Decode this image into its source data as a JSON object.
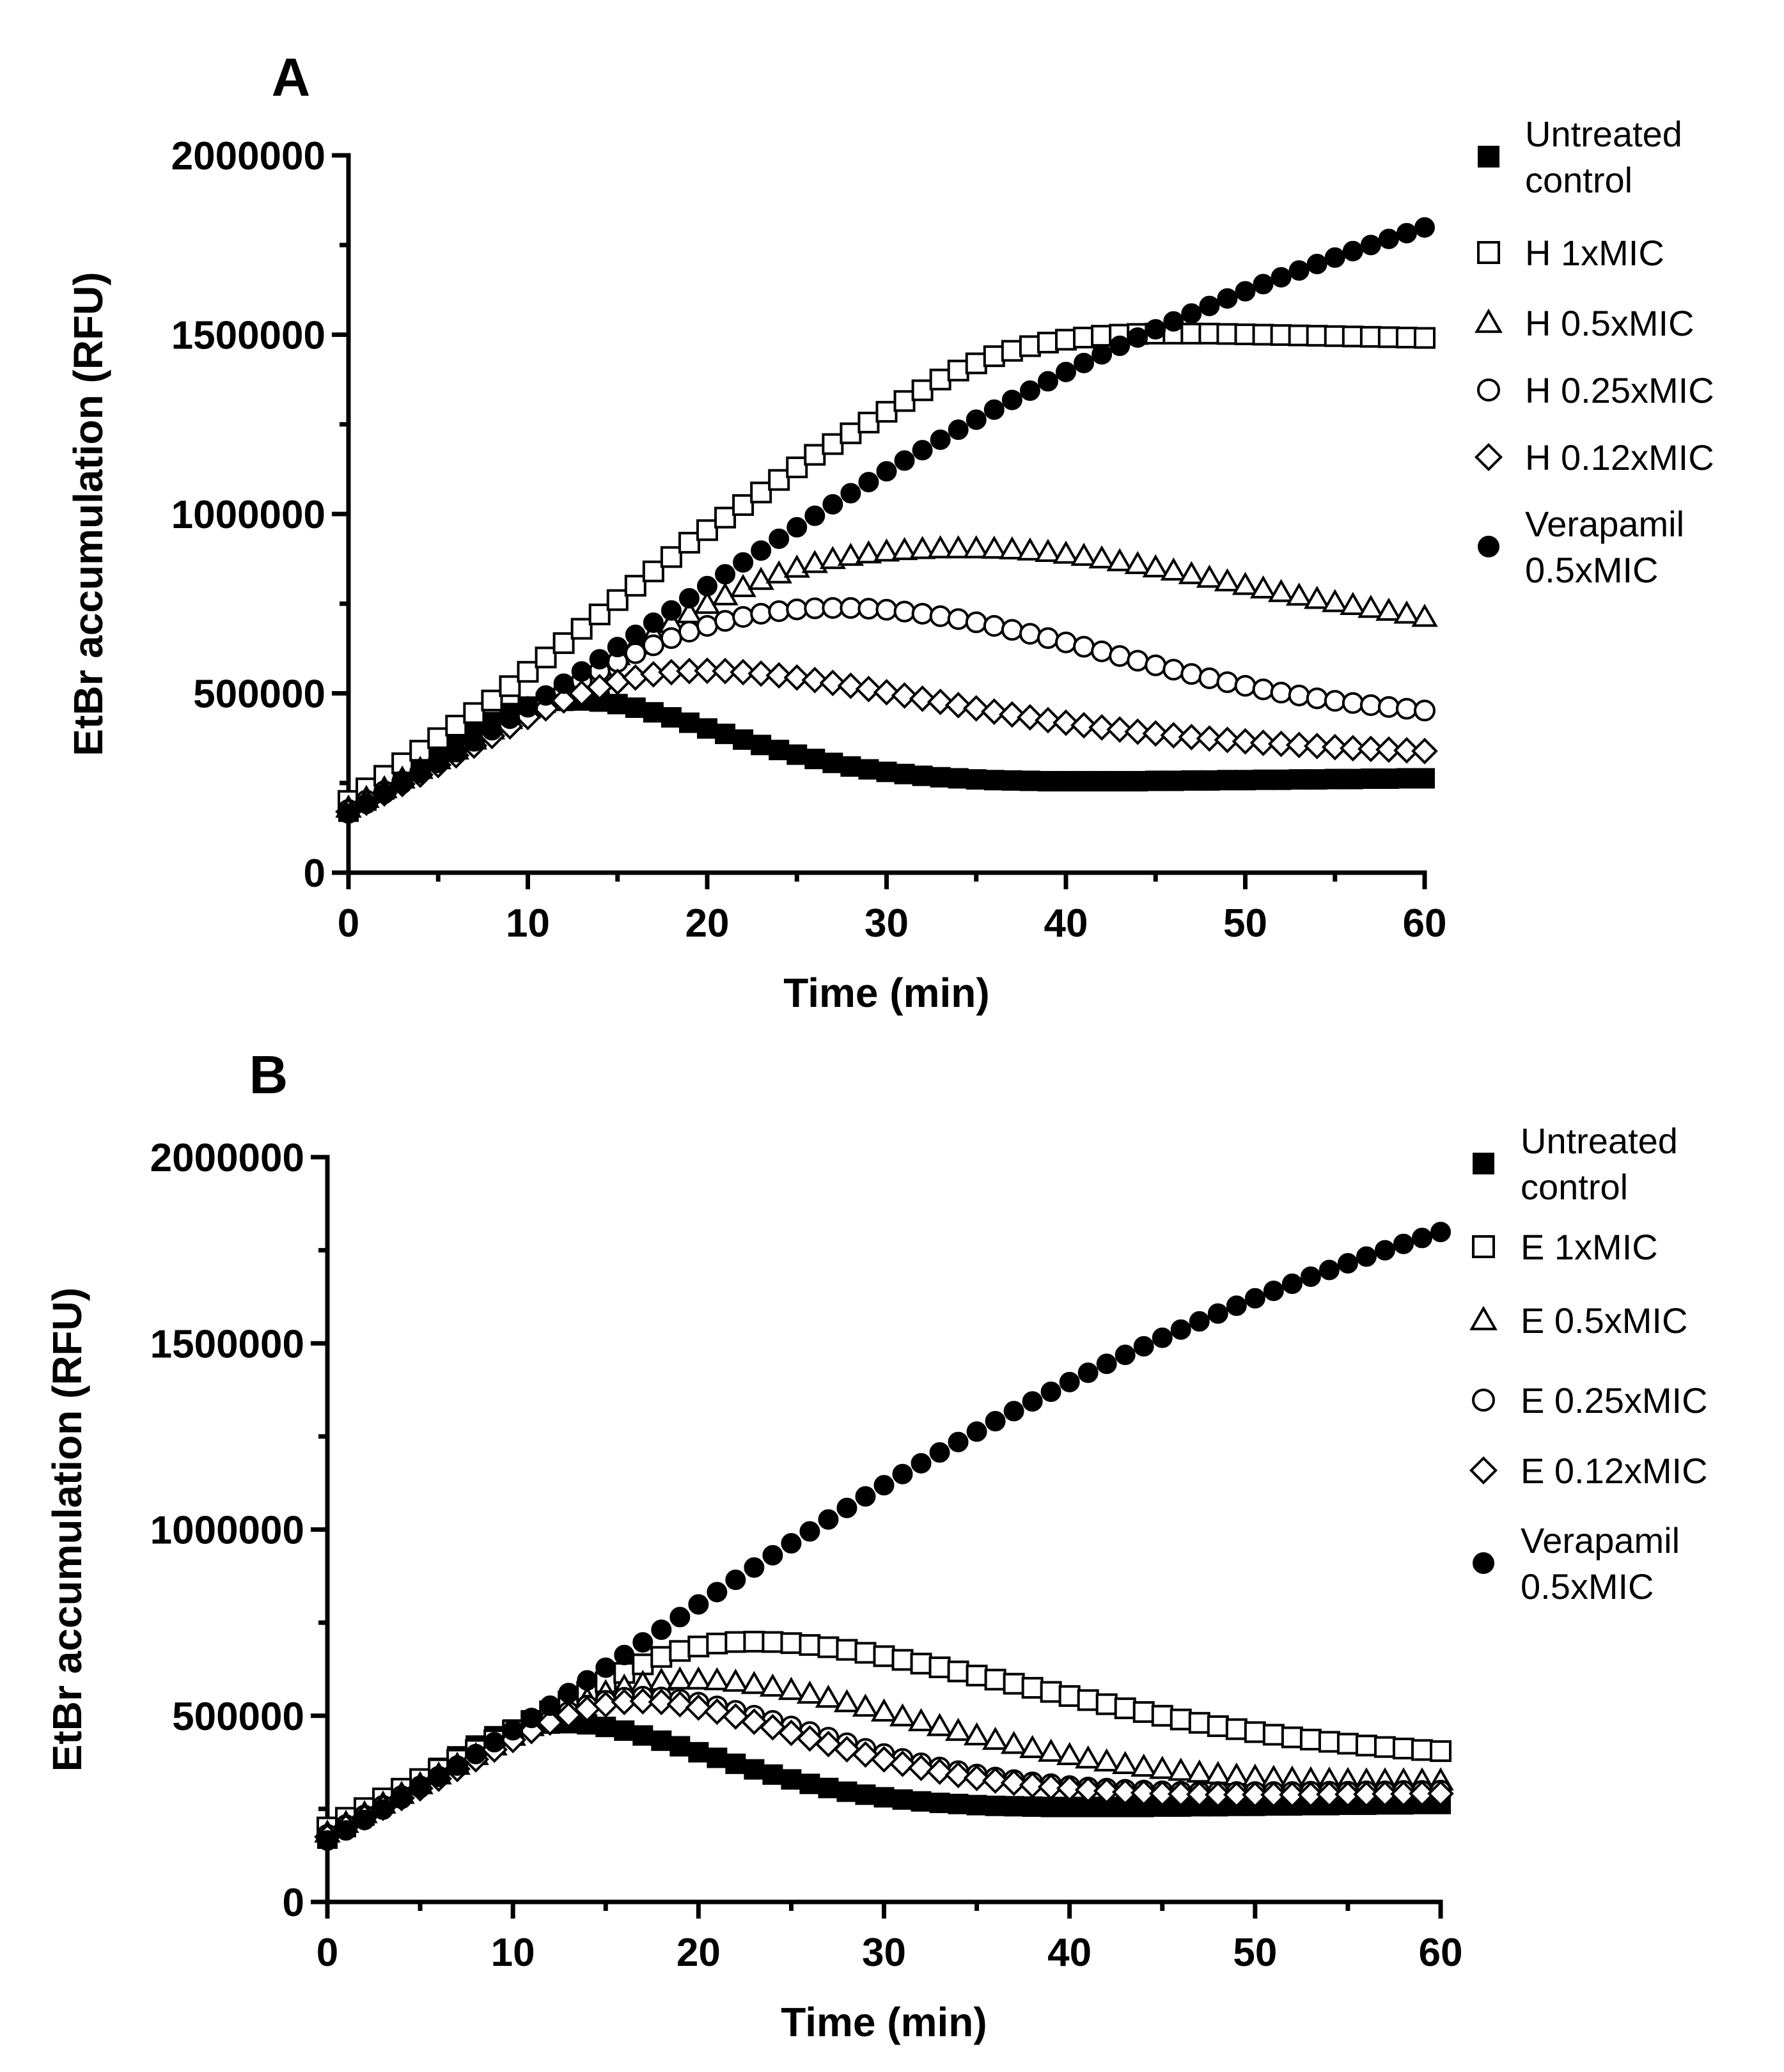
{
  "chart_data": [
    {
      "type": "scatter",
      "panel_label": "A",
      "xlabel": "Time (min)",
      "ylabel": "EtBr accumulation (RFU)",
      "xlim": [
        0,
        60
      ],
      "ylim": [
        0,
        2000000
      ],
      "x_ticks": [
        "0",
        "10",
        "20",
        "30",
        "40",
        "50",
        "60"
      ],
      "y_ticks": [
        "0",
        "500000",
        "1000000",
        "1500000",
        "2000000"
      ],
      "grid": false,
      "legend_position": "right",
      "x": [
        0,
        1,
        2,
        3,
        4,
        5,
        6,
        7,
        8,
        9,
        10,
        11,
        12,
        13,
        14,
        15,
        16,
        17,
        18,
        19,
        20,
        21,
        22,
        23,
        24,
        25,
        26,
        27,
        28,
        29,
        30,
        31,
        32,
        33,
        34,
        35,
        36,
        37,
        38,
        39,
        40,
        41,
        42,
        43,
        44,
        45,
        46,
        47,
        48,
        49,
        50,
        51,
        52,
        53,
        54,
        55,
        56,
        57,
        58,
        59,
        60
      ],
      "series": [
        {
          "name_lines": [
            "Untreated",
            "control"
          ],
          "marker": "square-filled",
          "values": [
            170000,
            201000,
            232000,
            264000,
            296000,
            328000,
            360000,
            391000,
            420000,
            445000,
            463000,
            474000,
            479000,
            480000,
            477000,
            470000,
            460000,
            447000,
            433000,
            418000,
            402000,
            387000,
            371000,
            356000,
            342000,
            329000,
            317000,
            306000,
            296000,
            288000,
            281000,
            275000,
            270000,
            266000,
            263000,
            260000,
            258000,
            257000,
            256000,
            255000,
            255000,
            255000,
            255000,
            255000,
            255000,
            256000,
            256000,
            257000,
            257000,
            258000,
            258000,
            259000,
            259000,
            260000,
            260000,
            261000,
            261000,
            262000,
            262000,
            263000,
            263000
          ]
        },
        {
          "name_lines": [
            "H 1xMIC"
          ],
          "marker": "square-open",
          "values": [
            200000,
            235000,
            270000,
            305000,
            340000,
            375000,
            410000,
            445000,
            480000,
            520000,
            560000,
            600000,
            640000,
            680000,
            720000,
            760000,
            800000,
            840000,
            880000,
            920000,
            955000,
            990000,
            1025000,
            1060000,
            1095000,
            1130000,
            1165000,
            1195000,
            1225000,
            1255000,
            1285000,
            1315000,
            1345000,
            1375000,
            1400000,
            1420000,
            1440000,
            1455000,
            1468000,
            1478000,
            1486000,
            1492000,
            1497000,
            1500000,
            1502000,
            1503000,
            1503000,
            1503000,
            1503000,
            1502000,
            1501000,
            1500000,
            1499000,
            1498000,
            1497000,
            1496000,
            1495000,
            1494000,
            1493000,
            1492000,
            1491000
          ]
        },
        {
          "name_lines": [
            "H 0.5xMIC"
          ],
          "marker": "triangle-open",
          "values": [
            180000,
            207000,
            234000,
            261000,
            288000,
            315000,
            342000,
            370000,
            398000,
            427000,
            456000,
            485000,
            515000,
            545000,
            575000,
            605000,
            635000,
            665000,
            695000,
            722000,
            748000,
            772000,
            795000,
            815000,
            833000,
            849000,
            862000,
            873000,
            882000,
            889000,
            894000,
            898000,
            901000,
            903000,
            903000,
            903000,
            902000,
            900000,
            897000,
            893000,
            888000,
            882000,
            875000,
            867000,
            859000,
            850000,
            841000,
            831000,
            821000,
            811000,
            801000,
            791000,
            781000,
            771000,
            762000,
            753000,
            745000,
            737000,
            729000,
            721000,
            712000
          ]
        },
        {
          "name_lines": [
            "H 0.25xMIC"
          ],
          "marker": "circle-open",
          "values": [
            175000,
            201000,
            227000,
            254000,
            281000,
            308000,
            335000,
            363000,
            391000,
            420000,
            449000,
            478000,
            507000,
            535000,
            562000,
            588000,
            612000,
            634000,
            654000,
            672000,
            688000,
            702000,
            713000,
            722000,
            729000,
            734000,
            737000,
            738000,
            738000,
            736000,
            733000,
            728000,
            722000,
            715000,
            707000,
            698000,
            688000,
            677000,
            666000,
            654000,
            642000,
            630000,
            617000,
            604000,
            591000,
            578000,
            566000,
            554000,
            542000,
            531000,
            521000,
            511000,
            502000,
            494000,
            486000,
            479000,
            473000,
            467000,
            462000,
            457000,
            452000
          ]
        },
        {
          "name_lines": [
            "H 0.12xMIC"
          ],
          "marker": "diamond-open",
          "values": [
            170000,
            195000,
            221000,
            247000,
            273000,
            300000,
            327000,
            354000,
            381000,
            408000,
            434000,
            458000,
            480000,
            500000,
            517000,
            532000,
            544000,
            553000,
            559000,
            562000,
            563000,
            562000,
            559000,
            555000,
            550000,
            544000,
            537000,
            529000,
            521000,
            512000,
            503000,
            494000,
            485000,
            476000,
            467000,
            458000,
            449000,
            441000,
            433000,
            425000,
            418000,
            411000,
            405000,
            399000,
            393000,
            388000,
            383000,
            378000,
            374000,
            370000,
            366000,
            362000,
            359000,
            356000,
            353000,
            350000,
            347000,
            345000,
            343000,
            341000,
            339000
          ]
        },
        {
          "name_lines": [
            "Verapamil",
            "0.5xMIC"
          ],
          "marker": "circle-filled",
          "values": [
            165000,
            192000,
            220000,
            248000,
            277000,
            306000,
            336000,
            366000,
            397000,
            429000,
            461000,
            494000,
            527000,
            561000,
            595000,
            629000,
            663000,
            697000,
            731000,
            765000,
            799000,
            832000,
            865000,
            898000,
            931000,
            963000,
            995000,
            1027000,
            1058000,
            1089000,
            1119000,
            1149000,
            1178000,
            1207000,
            1235000,
            1263000,
            1291000,
            1318000,
            1344000,
            1370000,
            1396000,
            1421000,
            1445000,
            1469000,
            1492000,
            1515000,
            1537000,
            1559000,
            1580000,
            1601000,
            1621000,
            1641000,
            1660000,
            1679000,
            1697000,
            1715000,
            1733000,
            1750000,
            1767000,
            1783000,
            1799000
          ]
        }
      ]
    },
    {
      "type": "scatter",
      "panel_label": "B",
      "xlabel": "Time (min)",
      "ylabel": "EtBr accumulation (RFU)",
      "xlim": [
        0,
        60
      ],
      "ylim": [
        0,
        2000000
      ],
      "x_ticks": [
        "0",
        "10",
        "20",
        "30",
        "40",
        "50",
        "60"
      ],
      "y_ticks": [
        "0",
        "500000",
        "1000000",
        "1500000",
        "2000000"
      ],
      "grid": false,
      "legend_position": "right",
      "x": [
        0,
        1,
        2,
        3,
        4,
        5,
        6,
        7,
        8,
        9,
        10,
        11,
        12,
        13,
        14,
        15,
        16,
        17,
        18,
        19,
        20,
        21,
        22,
        23,
        24,
        25,
        26,
        27,
        28,
        29,
        30,
        31,
        32,
        33,
        34,
        35,
        36,
        37,
        38,
        39,
        40,
        41,
        42,
        43,
        44,
        45,
        46,
        47,
        48,
        49,
        50,
        51,
        52,
        53,
        54,
        55,
        56,
        57,
        58,
        59,
        60
      ],
      "series": [
        {
          "name_lines": [
            "Untreated",
            "control"
          ],
          "marker": "square-filled",
          "values": [
            170000,
            201000,
            232000,
            264000,
            296000,
            328000,
            360000,
            391000,
            420000,
            445000,
            463000,
            474000,
            479000,
            480000,
            477000,
            470000,
            460000,
            447000,
            433000,
            418000,
            402000,
            387000,
            371000,
            356000,
            342000,
            329000,
            317000,
            306000,
            296000,
            288000,
            281000,
            275000,
            270000,
            266000,
            263000,
            260000,
            258000,
            257000,
            256000,
            255000,
            255000,
            255000,
            255000,
            255000,
            255000,
            256000,
            256000,
            257000,
            257000,
            258000,
            258000,
            259000,
            259000,
            260000,
            260000,
            261000,
            261000,
            262000,
            262000,
            263000,
            263000
          ]
        },
        {
          "name_lines": [
            "E 1xMIC"
          ],
          "marker": "square-open",
          "values": [
            200000,
            226000,
            252000,
            278000,
            304000,
            330000,
            356000,
            382000,
            408000,
            434000,
            460000,
            486000,
            512000,
            538000,
            564000,
            590000,
            615000,
            638000,
            658000,
            674000,
            686000,
            694000,
            698000,
            699000,
            698000,
            695000,
            690000,
            684000,
            677000,
            669000,
            660000,
            650000,
            640000,
            630000,
            619000,
            608000,
            597000,
            586000,
            575000,
            564000,
            553000,
            542000,
            531000,
            520000,
            510000,
            500000,
            490000,
            481000,
            472000,
            464000,
            456000,
            449000,
            442000,
            436000,
            430000,
            425000,
            420000,
            416000,
            412000,
            408000,
            405000
          ]
        },
        {
          "name_lines": [
            "E 0.5xMIC"
          ],
          "marker": "triangle-open",
          "values": [
            185000,
            211000,
            237000,
            263000,
            289000,
            315000,
            341000,
            367000,
            393000,
            419000,
            445000,
            471000,
            497000,
            521000,
            543000,
            562000,
            577000,
            587000,
            593000,
            596000,
            596000,
            594000,
            590000,
            584000,
            577000,
            568000,
            558000,
            547000,
            535000,
            523000,
            510000,
            497000,
            484000,
            471000,
            458000,
            446000,
            434000,
            423000,
            412000,
            402000,
            393000,
            384000,
            376000,
            369000,
            362000,
            356000,
            351000,
            346000,
            342000,
            338000,
            335000,
            332000,
            330000,
            328000,
            327000,
            326000,
            325000,
            325000,
            325000,
            325000,
            325000
          ]
        },
        {
          "name_lines": [
            "E 0.25xMIC"
          ],
          "marker": "circle-open",
          "values": [
            180000,
            206000,
            232000,
            258000,
            284000,
            310000,
            336000,
            362000,
            388000,
            414000,
            440000,
            465000,
            489000,
            510000,
            527000,
            540000,
            548000,
            551000,
            549000,
            543000,
            535000,
            525000,
            513000,
            500000,
            486000,
            471000,
            456000,
            441000,
            426000,
            411000,
            397000,
            384000,
            372000,
            361000,
            351000,
            342000,
            334000,
            327000,
            321000,
            316000,
            311000,
            307000,
            304000,
            301000,
            299000,
            297000,
            296000,
            295000,
            295000,
            295000,
            295000,
            295000,
            295000,
            296000,
            296000,
            296000,
            297000,
            297000,
            298000,
            298000,
            299000
          ]
        },
        {
          "name_lines": [
            "E 0.12xMIC"
          ],
          "marker": "diamond-open",
          "values": [
            175000,
            201000,
            227000,
            253000,
            279000,
            305000,
            331000,
            357000,
            383000,
            409000,
            435000,
            459000,
            482000,
            502000,
            518000,
            530000,
            537000,
            539000,
            537000,
            531000,
            522000,
            511000,
            498000,
            484000,
            469000,
            454000,
            439000,
            424000,
            410000,
            396000,
            383000,
            371000,
            360000,
            350000,
            341000,
            333000,
            326000,
            320000,
            314000,
            309000,
            305000,
            301000,
            298000,
            295000,
            293000,
            291000,
            290000,
            289000,
            288000,
            288000,
            288000,
            288000,
            288000,
            288000,
            289000,
            289000,
            289000,
            290000,
            290000,
            291000,
            291000
          ]
        },
        {
          "name_lines": [
            "Verapamil",
            "0.5xMIC"
          ],
          "marker": "circle-filled",
          "values": [
            165000,
            192000,
            220000,
            248000,
            277000,
            306000,
            336000,
            366000,
            397000,
            429000,
            461000,
            494000,
            527000,
            561000,
            595000,
            629000,
            663000,
            697000,
            731000,
            765000,
            799000,
            832000,
            865000,
            898000,
            931000,
            963000,
            995000,
            1027000,
            1058000,
            1089000,
            1119000,
            1149000,
            1178000,
            1207000,
            1235000,
            1263000,
            1291000,
            1318000,
            1344000,
            1370000,
            1396000,
            1421000,
            1445000,
            1469000,
            1492000,
            1515000,
            1537000,
            1559000,
            1580000,
            1601000,
            1621000,
            1641000,
            1660000,
            1679000,
            1697000,
            1715000,
            1733000,
            1750000,
            1767000,
            1783000,
            1799000
          ]
        }
      ]
    }
  ]
}
